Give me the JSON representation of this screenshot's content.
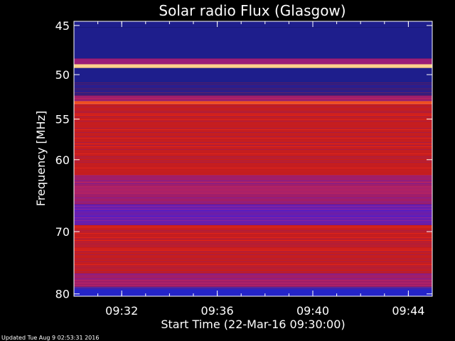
{
  "chart_data": {
    "type": "heatmap",
    "title": "Solar radio Flux (Glasgow)",
    "xlabel": "Start Time (22-Mar-16 09:30:00)",
    "ylabel": "Frequency [MHz]",
    "x_tick_labels": [
      "09:32",
      "09:36",
      "09:40",
      "09:44"
    ],
    "x_tick_minutes": [
      2,
      6,
      10,
      14
    ],
    "x_range_minutes": [
      0,
      15
    ],
    "y_tick_labels": [
      "45",
      "50",
      "55",
      "60",
      "70",
      "80"
    ],
    "y_tick_values": [
      45,
      50,
      55,
      60,
      70,
      80
    ],
    "y_range_mhz": [
      44.6,
      80.4
    ],
    "y_scale": "log",
    "colormap": [
      "#1e1e8c",
      "#2424c8",
      "#5a1ec8",
      "#9b1e78",
      "#c81e1e",
      "#f01e0a",
      "#ff5a1e",
      "#ffd28c"
    ],
    "bands_mhz": [
      {
        "from": 44.6,
        "to": 45.2,
        "level": 0.0
      },
      {
        "from": 45.2,
        "to": 48.3,
        "level": 0.12
      },
      {
        "from": 48.3,
        "to": 48.9,
        "level": 0.5
      },
      {
        "from": 48.9,
        "to": 49.3,
        "level": 1.0
      },
      {
        "from": 49.3,
        "to": 52.3,
        "level": 0.12
      },
      {
        "from": 52.3,
        "to": 52.9,
        "level": 0.5
      },
      {
        "from": 52.9,
        "to": 53.3,
        "level": 0.95
      },
      {
        "from": 53.3,
        "to": 62.0,
        "level": 0.68
      },
      {
        "from": 62.0,
        "to": 66.0,
        "level": 0.45
      },
      {
        "from": 66.0,
        "to": 69.0,
        "level": 0.35
      },
      {
        "from": 69.0,
        "to": 76.5,
        "level": 0.62
      },
      {
        "from": 76.5,
        "to": 78.8,
        "level": 0.45
      },
      {
        "from": 78.8,
        "to": 80.4,
        "level": 0.2
      }
    ]
  },
  "footer": {
    "text": "Updated Tue Aug  9 02:53:31 2016"
  }
}
